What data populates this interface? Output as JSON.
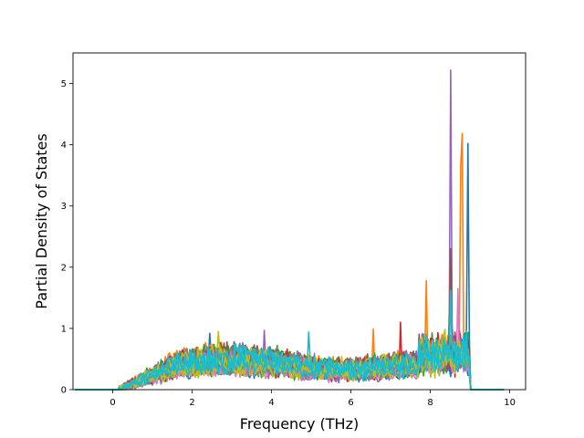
{
  "chart_data": {
    "type": "line",
    "title": "",
    "xlabel": "Frequency (THz)",
    "ylabel": "Partial Density of States",
    "xlim": [
      -1.0,
      10.4
    ],
    "ylim": [
      0,
      5.5
    ],
    "x_ticks": [
      0,
      2,
      4,
      6,
      8,
      10
    ],
    "x_tick_labels": [
      "0",
      "2",
      "4",
      "6",
      "8",
      "10"
    ],
    "y_ticks": [
      0,
      1,
      2,
      3,
      4,
      5
    ],
    "y_tick_labels": [
      "0",
      "1",
      "2",
      "3",
      "4",
      "5"
    ],
    "grid": false,
    "legend": "none",
    "series_count": 10,
    "colors": [
      "#1f77b4",
      "#ff7f0e",
      "#2ca02c",
      "#d62728",
      "#9467bd",
      "#8c564b",
      "#e377c2",
      "#7f7f7f",
      "#bcbd22",
      "#17becf"
    ],
    "peaks": [
      {
        "color": "#9467bd",
        "x": 8.5,
        "y": 5.22
      },
      {
        "color": "#ff7f0e",
        "x": 8.8,
        "y": 4.18
      },
      {
        "color": "#1f77b4",
        "x": 8.95,
        "y": 4.02
      },
      {
        "color": "#ff7f0e",
        "x": 8.75,
        "y": 3.65
      },
      {
        "color": "#8c564b",
        "x": 8.5,
        "y": 2.3
      },
      {
        "color": "#ff7f0e",
        "x": 7.9,
        "y": 1.78
      },
      {
        "color": "#17becf",
        "x": 8.5,
        "y": 1.62
      },
      {
        "color": "#e377c2",
        "x": 8.7,
        "y": 1.65
      },
      {
        "color": "#d62728",
        "x": 7.25,
        "y": 1.1
      },
      {
        "color": "#ff7f0e",
        "x": 6.55,
        "y": 0.99
      },
      {
        "color": "#17becf",
        "x": 4.95,
        "y": 0.94
      },
      {
        "color": "#9467bd",
        "x": 3.8,
        "y": 0.97
      },
      {
        "color": "#bcbd22",
        "x": 2.65,
        "y": 0.95
      },
      {
        "color": "#1f77b4",
        "x": 2.45,
        "y": 0.92
      }
    ]
  }
}
